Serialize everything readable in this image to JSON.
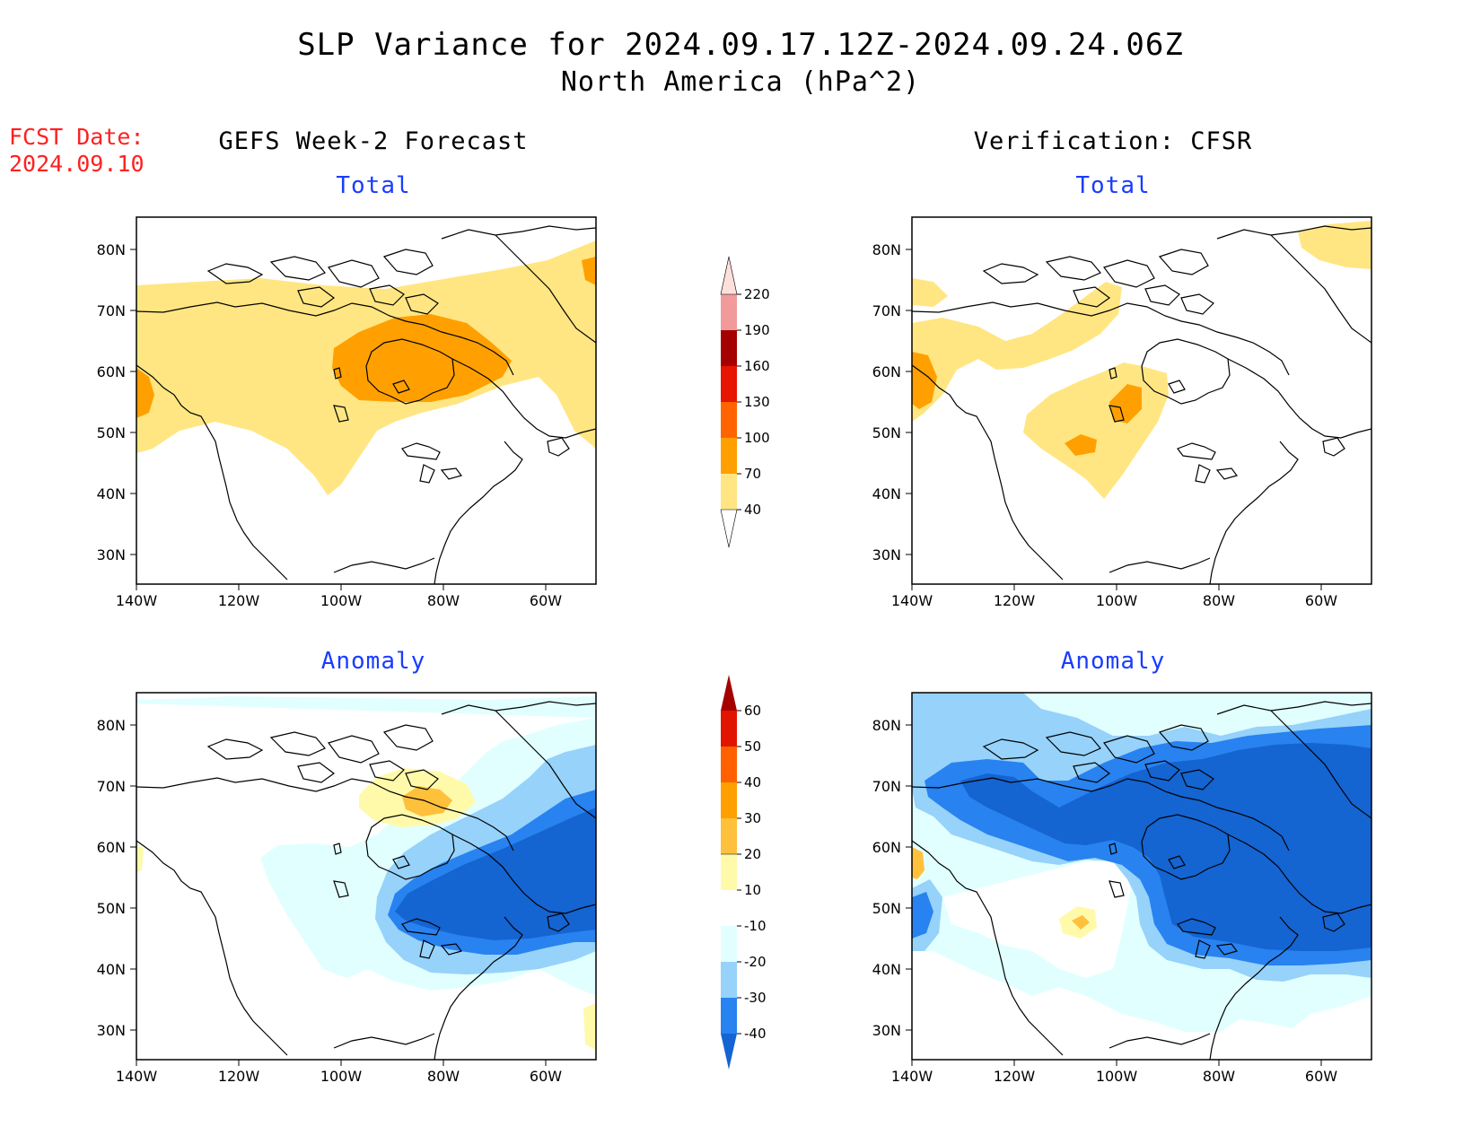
{
  "header": {
    "title_line1": "SLP Variance for 2024.09.17.12Z-2024.09.24.06Z",
    "title_line2": "North America (hPa^2)",
    "fcst_label": "FCST Date:",
    "fcst_date": "2024.09.10"
  },
  "columns": {
    "left_title": "GEFS Week-2 Forecast",
    "right_title": "Verification: CFSR"
  },
  "panels": {
    "total_label": "Total",
    "anomaly_label": "Anomaly"
  },
  "axes": {
    "lat_ticks": [
      "80N",
      "70N",
      "60N",
      "50N",
      "40N",
      "30N"
    ],
    "lon_ticks": [
      "140W",
      "120W",
      "100W",
      "80W",
      "60W"
    ]
  },
  "colorbars": {
    "total": {
      "levels": [
        "40",
        "70",
        "100",
        "130",
        "160",
        "190",
        "220"
      ],
      "colors": [
        "#ffe682",
        "#ffa000",
        "#ff6400",
        "#e61400",
        "#a50000",
        "#f29a9a",
        "#fde0dc"
      ]
    },
    "anomaly": {
      "levels": [
        "-40",
        "-30",
        "-20",
        "-10",
        "10",
        "20",
        "30",
        "40",
        "50",
        "60"
      ],
      "colors": [
        "#1464d2",
        "#2882f0",
        "#96d2fa",
        "#e1ffff",
        "#ffffff",
        "#fffaaa",
        "#ffc03c",
        "#ffa000",
        "#ff6000",
        "#e11400",
        "#a50000"
      ]
    }
  }
}
